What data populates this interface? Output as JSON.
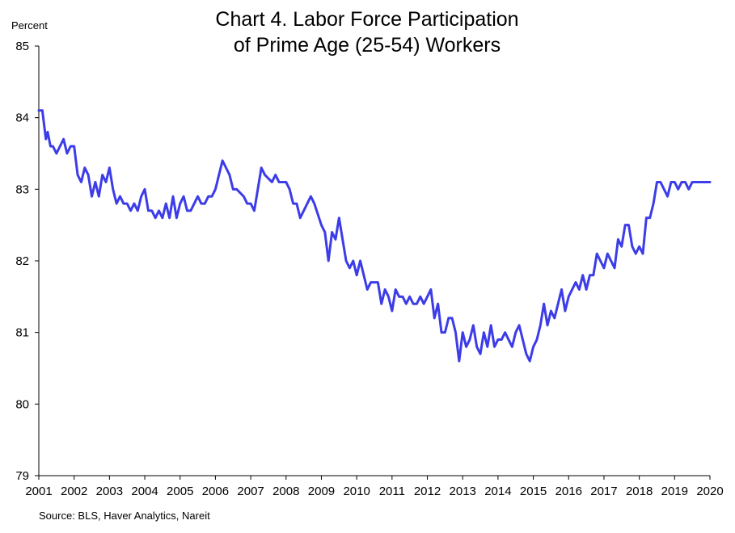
{
  "chart_data": {
    "type": "line",
    "title_lines": [
      "Chart 4. Labor Force Participation",
      "of Prime Age (25-54) Workers"
    ],
    "ylabel": "Percent",
    "source": "Source: BLS, Haver Analytics, Nareit",
    "ylim": [
      79,
      85
    ],
    "xlim": [
      2001,
      2020
    ],
    "y_ticks": [
      79,
      80,
      81,
      82,
      83,
      84,
      85
    ],
    "x_ticks": [
      2001,
      2002,
      2003,
      2004,
      2005,
      2006,
      2007,
      2008,
      2009,
      2010,
      2011,
      2012,
      2013,
      2014,
      2015,
      2016,
      2017,
      2018,
      2019,
      2020
    ],
    "x_ticks_labels": [
      "2001",
      "2002",
      "2003",
      "2004",
      "2005",
      "2006",
      "2007",
      "2008",
      "2009",
      "2010",
      "2011",
      "2012",
      "2013",
      "2014",
      "2015",
      "2016",
      "2017",
      "2018",
      "2019",
      "2020"
    ],
    "grid": false,
    "legend": "none",
    "series": [
      {
        "color": "#3c3ce8",
        "x": [
          2001.0,
          2001.1,
          2001.2,
          2001.25,
          2001.33,
          2001.4,
          2001.5,
          2001.6,
          2001.7,
          2001.8,
          2001.9,
          2002.0,
          2002.1,
          2002.2,
          2002.3,
          2002.4,
          2002.5,
          2002.6,
          2002.7,
          2002.8,
          2002.9,
          2003.0,
          2003.1,
          2003.2,
          2003.3,
          2003.4,
          2003.5,
          2003.6,
          2003.7,
          2003.8,
          2003.9,
          2004.0,
          2004.1,
          2004.2,
          2004.3,
          2004.4,
          2004.5,
          2004.6,
          2004.7,
          2004.8,
          2004.9,
          2005.0,
          2005.1,
          2005.2,
          2005.3,
          2005.4,
          2005.5,
          2005.6,
          2005.7,
          2005.8,
          2005.9,
          2006.0,
          2006.2,
          2006.4,
          2006.5,
          2006.6,
          2006.8,
          2006.9,
          2007.0,
          2007.1,
          2007.2,
          2007.3,
          2007.4,
          2007.6,
          2007.7,
          2007.8,
          2008.0,
          2008.1,
          2008.2,
          2008.3,
          2008.4,
          2008.6,
          2008.7,
          2008.8,
          2009.0,
          2009.1,
          2009.2,
          2009.3,
          2009.4,
          2009.5,
          2009.6,
          2009.7,
          2009.8,
          2009.9,
          2010.0,
          2010.1,
          2010.2,
          2010.3,
          2010.4,
          2010.5,
          2010.6,
          2010.7,
          2010.8,
          2010.9,
          2011.0,
          2011.1,
          2011.2,
          2011.3,
          2011.4,
          2011.5,
          2011.6,
          2011.7,
          2011.8,
          2011.9,
          2012.0,
          2012.1,
          2012.2,
          2012.3,
          2012.4,
          2012.5,
          2012.6,
          2012.7,
          2012.8,
          2012.9,
          2013.0,
          2013.1,
          2013.2,
          2013.3,
          2013.4,
          2013.5,
          2013.6,
          2013.7,
          2013.8,
          2013.9,
          2014.0,
          2014.1,
          2014.2,
          2014.3,
          2014.4,
          2014.5,
          2014.6,
          2014.7,
          2014.8,
          2014.9,
          2015.0,
          2015.1,
          2015.2,
          2015.3,
          2015.4,
          2015.5,
          2015.6,
          2015.7,
          2015.8,
          2015.9,
          2016.0,
          2016.1,
          2016.2,
          2016.3,
          2016.4,
          2016.5,
          2016.6,
          2016.7,
          2016.8,
          2016.9,
          2017.0,
          2017.1,
          2017.2,
          2017.3,
          2017.4,
          2017.5,
          2017.6,
          2017.7,
          2017.8,
          2017.9,
          2018.0,
          2018.1,
          2018.2,
          2018.3,
          2018.4,
          2018.5,
          2018.6,
          2018.7,
          2018.8,
          2018.9,
          2019.0,
          2019.1,
          2019.2,
          2019.3,
          2019.4,
          2019.5,
          2019.6,
          2019.7,
          2019.8,
          2019.9,
          2020.0
        ],
        "values": [
          84.1,
          84.1,
          83.7,
          83.8,
          83.6,
          83.6,
          83.5,
          83.6,
          83.7,
          83.5,
          83.6,
          83.6,
          83.2,
          83.1,
          83.3,
          83.2,
          82.9,
          83.1,
          82.9,
          83.2,
          83.1,
          83.3,
          83.0,
          82.8,
          82.9,
          82.8,
          82.8,
          82.7,
          82.8,
          82.7,
          82.9,
          83.0,
          82.7,
          82.7,
          82.6,
          82.7,
          82.6,
          82.8,
          82.6,
          82.9,
          82.6,
          82.8,
          82.9,
          82.7,
          82.7,
          82.8,
          82.9,
          82.8,
          82.8,
          82.9,
          82.9,
          83.0,
          83.4,
          83.2,
          83.0,
          83.0,
          82.9,
          82.8,
          82.8,
          82.7,
          83.0,
          83.3,
          83.2,
          83.1,
          83.2,
          83.1,
          83.1,
          83.0,
          82.8,
          82.8,
          82.6,
          82.8,
          82.9,
          82.8,
          82.5,
          82.4,
          82.0,
          82.4,
          82.3,
          82.6,
          82.3,
          82.0,
          81.9,
          82.0,
          81.8,
          82.0,
          81.8,
          81.6,
          81.7,
          81.7,
          81.7,
          81.4,
          81.6,
          81.5,
          81.3,
          81.6,
          81.5,
          81.5,
          81.4,
          81.5,
          81.4,
          81.4,
          81.5,
          81.4,
          81.5,
          81.6,
          81.2,
          81.4,
          81.0,
          81.0,
          81.2,
          81.2,
          81.0,
          80.6,
          81.0,
          80.8,
          80.9,
          81.1,
          80.8,
          80.7,
          81.0,
          80.8,
          81.1,
          80.8,
          80.9,
          80.9,
          81.0,
          80.9,
          80.8,
          81.0,
          81.1,
          80.9,
          80.7,
          80.6,
          80.8,
          80.9,
          81.1,
          81.4,
          81.1,
          81.3,
          81.2,
          81.4,
          81.6,
          81.3,
          81.5,
          81.6,
          81.7,
          81.6,
          81.8,
          81.6,
          81.8,
          81.8,
          82.1,
          82.0,
          81.9,
          82.1,
          82.0,
          81.9,
          82.3,
          82.2,
          82.5,
          82.5,
          82.2,
          82.1,
          82.2,
          82.1,
          82.6,
          82.6,
          82.8,
          83.1,
          83.1,
          83.0,
          82.9,
          83.1,
          83.1,
          83.0,
          83.1,
          83.1,
          83.0,
          83.1,
          83.1,
          83.1,
          83.1,
          83.1,
          83.1
        ]
      }
    ]
  }
}
